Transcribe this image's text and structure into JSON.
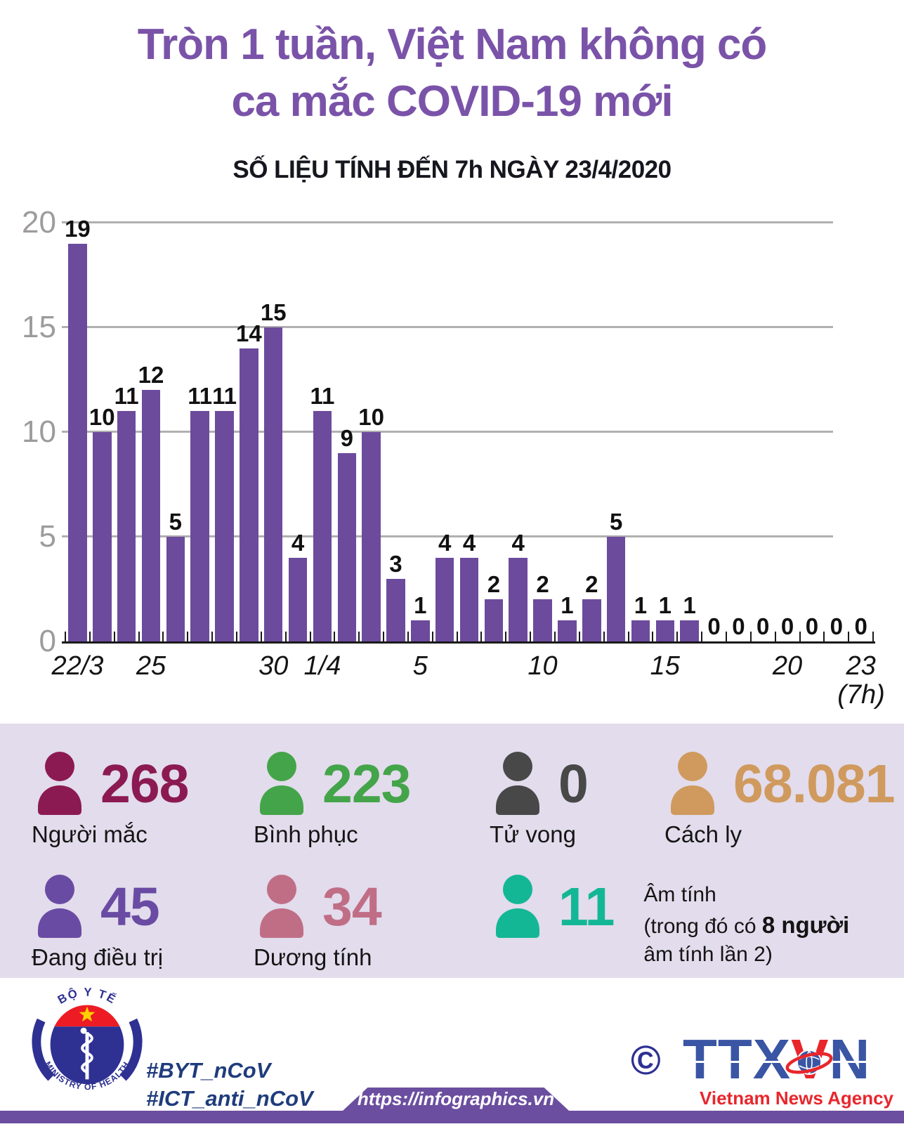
{
  "title": {
    "line1": "Tròn 1 tuần, Việt Nam không có",
    "line2": "ca mắc COVID-19 mới"
  },
  "subtitle": "SỐ LIỆU TÍNH ĐẾN 7h NGÀY 23/4/2020",
  "chart_data": {
    "type": "bar",
    "values": [
      19,
      10,
      11,
      12,
      5,
      11,
      11,
      14,
      15,
      4,
      11,
      9,
      10,
      3,
      1,
      4,
      4,
      2,
      4,
      2,
      1,
      2,
      5,
      1,
      1,
      1,
      0,
      0,
      0,
      0,
      0,
      0,
      0
    ],
    "tick_labels": [
      {
        "index": 0,
        "label": "22/3"
      },
      {
        "index": 3,
        "label": "25"
      },
      {
        "index": 8,
        "label": "30"
      },
      {
        "index": 10,
        "label": "1/4"
      },
      {
        "index": 14,
        "label": "5"
      },
      {
        "index": 19,
        "label": "10"
      },
      {
        "index": 24,
        "label": "15"
      },
      {
        "index": 29,
        "label": "20"
      },
      {
        "index": 32,
        "label": "23"
      }
    ],
    "x_axis_note": "(7h)",
    "yticks": [
      0,
      5,
      10,
      15,
      20
    ],
    "ylim": [
      0,
      20
    ],
    "grid": true,
    "legend": "none",
    "bar_color": "#6c4b9d"
  },
  "stats": [
    {
      "value": "268",
      "label": "Người mắc",
      "color": "#8c1a52"
    },
    {
      "value": "223",
      "label": "Bình phục",
      "color": "#44a449"
    },
    {
      "value": "0",
      "label": "Tử vong",
      "color": "#484848"
    },
    {
      "value": "68.081",
      "label": "Cách ly",
      "color": "#d09a5e"
    },
    {
      "value": "45",
      "label": "Đang điều trị",
      "color": "#6a4ba3"
    },
    {
      "value": "34",
      "label": "Dương tính",
      "color": "#c06e86"
    },
    {
      "value": "11",
      "label": "",
      "color": "#14b795",
      "note": {
        "line1": "Âm tính",
        "line2_pre": "(trong đó có ",
        "line2_bold": "8 người",
        "line3": "âm tính lần 2)"
      }
    }
  ],
  "footer": {
    "moh": {
      "top_text": "BỘ Y TẾ",
      "bottom_text": "MINISTRY OF HEALTH"
    },
    "hashtag1": "#BYT_nCoV",
    "hashtag2": "#ICT_anti_nCoV",
    "copyright": "©",
    "agency": {
      "ttx": "TTX",
      "v": "V",
      "n": "N",
      "tagline": "Vietnam News Agency"
    },
    "url": "https://infographics.vn"
  }
}
